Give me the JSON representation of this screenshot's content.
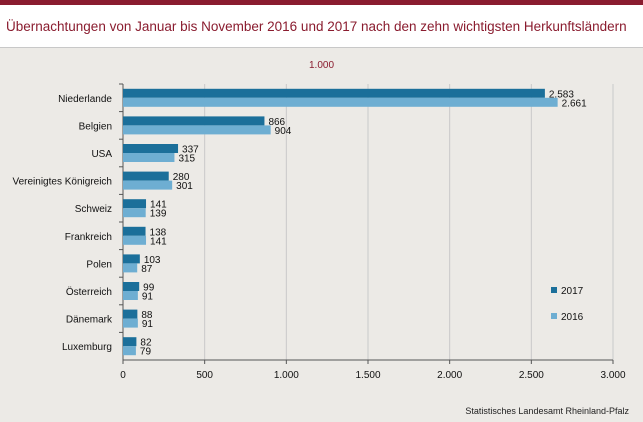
{
  "title": "Übernachtungen von Januar bis November 2016 und 2017 nach den zehn wichtigsten Herkunftsländern",
  "unit_label": "1.000",
  "source": "Statistisches Landesamt Rheinland-Pfalz",
  "colors": {
    "s2017": "#1b6f9a",
    "s2016": "#6eaed2",
    "accent": "#8a1c2f",
    "panel": "#eceae6"
  },
  "chart_data": {
    "type": "bar",
    "orientation": "horizontal",
    "title": "Übernachtungen von Januar bis November 2016 und 2017 nach den zehn wichtigsten Herkunftsländern",
    "unit": "1.000",
    "categories": [
      "Niederlande",
      "Belgien",
      "USA",
      "Vereinigtes Königreich",
      "Schweiz",
      "Frankreich",
      "Polen",
      "Österreich",
      "Dänemark",
      "Luxemburg"
    ],
    "series": [
      {
        "name": "2017",
        "values": [
          2583,
          866,
          337,
          280,
          141,
          138,
          103,
          99,
          88,
          82
        ],
        "labels": [
          "2.583",
          "866",
          "337",
          "280",
          "141",
          "138",
          "103",
          "99",
          "88",
          "82"
        ]
      },
      {
        "name": "2016",
        "values": [
          2661,
          904,
          315,
          301,
          139,
          141,
          87,
          91,
          91,
          79
        ],
        "labels": [
          "2.661",
          "904",
          "315",
          "301",
          "139",
          "141",
          "87",
          "91",
          "91",
          "79"
        ]
      }
    ],
    "xlim": [
      0,
      3000
    ],
    "xticks": [
      0,
      500,
      1000,
      1500,
      2000,
      2500,
      3000
    ],
    "xtick_labels": [
      "0",
      "500",
      "1.000",
      "1.500",
      "2.000",
      "2.500",
      "3.000"
    ],
    "grid": true,
    "legend_position": "right"
  }
}
